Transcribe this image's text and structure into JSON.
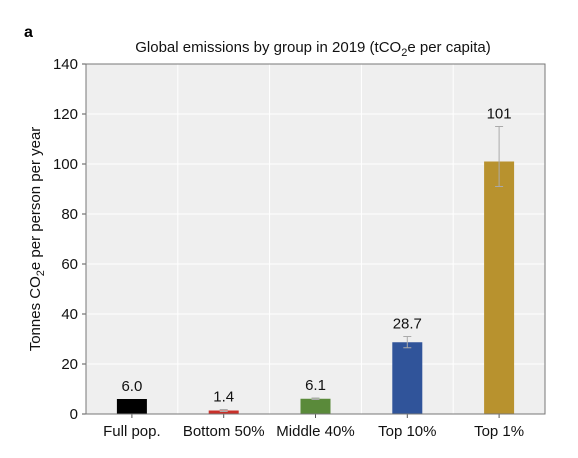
{
  "panel_label": "a",
  "chart_data": {
    "type": "bar",
    "title_main": "Global emissions by group in 2019 (tCO",
    "title_sub": "2",
    "title_tail": "e per capita)",
    "ylabel_main": "Tonnes CO",
    "ylabel_sub": "2",
    "ylabel_tail": "e per person per year",
    "xlabel": "",
    "ylim": [
      0,
      140
    ],
    "yticks": [
      0,
      20,
      40,
      60,
      80,
      100,
      120,
      140
    ],
    "grid": true,
    "categories": [
      "Full pop.",
      "Bottom 50%",
      "Middle 40%",
      "Top 10%",
      "Top 1%"
    ],
    "values": [
      6.0,
      1.4,
      6.1,
      28.7,
      101
    ],
    "value_labels": [
      "6.0",
      "1.4",
      "6.1",
      "28.7",
      "101"
    ],
    "error_bars": [
      null,
      [
        1.0,
        1.8
      ],
      [
        5.8,
        6.4
      ],
      [
        26.5,
        31.0
      ],
      [
        91,
        115
      ]
    ],
    "colors": [
      "#000000",
      "#c8302a",
      "#5a8a3a",
      "#30549a",
      "#b8922e"
    ],
    "background": "#efefef",
    "gridline_color": "#ffffff",
    "errorbar_color": "#aaaaaa"
  }
}
